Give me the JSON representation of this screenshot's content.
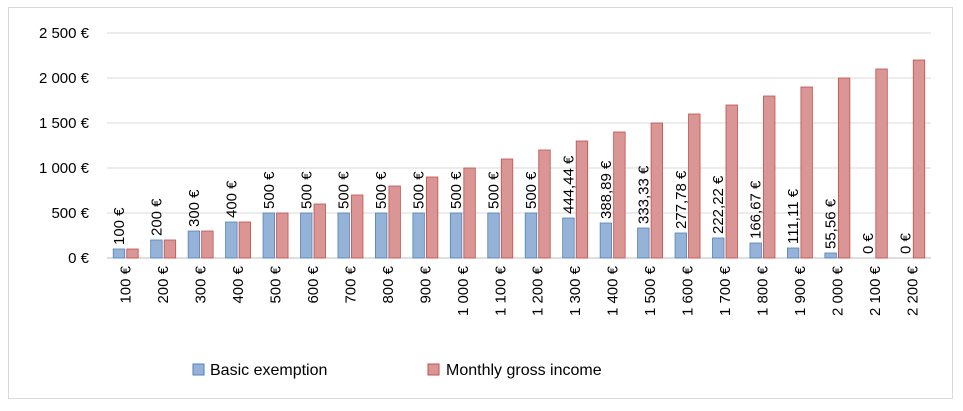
{
  "chart_data": {
    "type": "bar",
    "title": "",
    "xlabel": "",
    "ylabel": "",
    "ylim": [
      0,
      2500
    ],
    "yticks": [
      "0 €",
      "500 €",
      "1 000 €",
      "1 500 €",
      "2 000 €",
      "2 500 €"
    ],
    "ytick_values": [
      0,
      500,
      1000,
      1500,
      2000,
      2500
    ],
    "grid": true,
    "legend_position": "bottom",
    "categories": [
      "100 €",
      "200 €",
      "300 €",
      "400 €",
      "500 €",
      "600 €",
      "700 €",
      "800 €",
      "900 €",
      "1 000 €",
      "1 100 €",
      "1 200 €",
      "1 300 €",
      "1 400 €",
      "1 500 €",
      "1 600 €",
      "1 700 €",
      "1 800 €",
      "1 900 €",
      "2 000 €",
      "2 100 €",
      "2 200 €"
    ],
    "series": [
      {
        "name": "Basic exemption",
        "color": "#95b3d7",
        "values": [
          100,
          200,
          300,
          400,
          500,
          500,
          500,
          500,
          500,
          500,
          500,
          500,
          444.44,
          388.89,
          333.33,
          277.78,
          222.22,
          166.67,
          111.11,
          55.56,
          0,
          0
        ],
        "labels": [
          "100 €",
          "200 €",
          "300 €",
          "400 €",
          "500 €",
          "500 €",
          "500 €",
          "500 €",
          "500 €",
          "500 €",
          "500 €",
          "500 €",
          "444,44 €",
          "388,89 €",
          "333,33 €",
          "277,78 €",
          "222,22 €",
          "166,67 €",
          "111,11 €",
          "55,56 €",
          "0 €",
          "0 €"
        ]
      },
      {
        "name": "Monthly gross income",
        "color": "#d99694",
        "values": [
          100,
          200,
          300,
          400,
          500,
          600,
          700,
          800,
          900,
          1000,
          1100,
          1200,
          1300,
          1400,
          1500,
          1600,
          1700,
          1800,
          1900,
          2000,
          2100,
          2200
        ]
      }
    ]
  }
}
